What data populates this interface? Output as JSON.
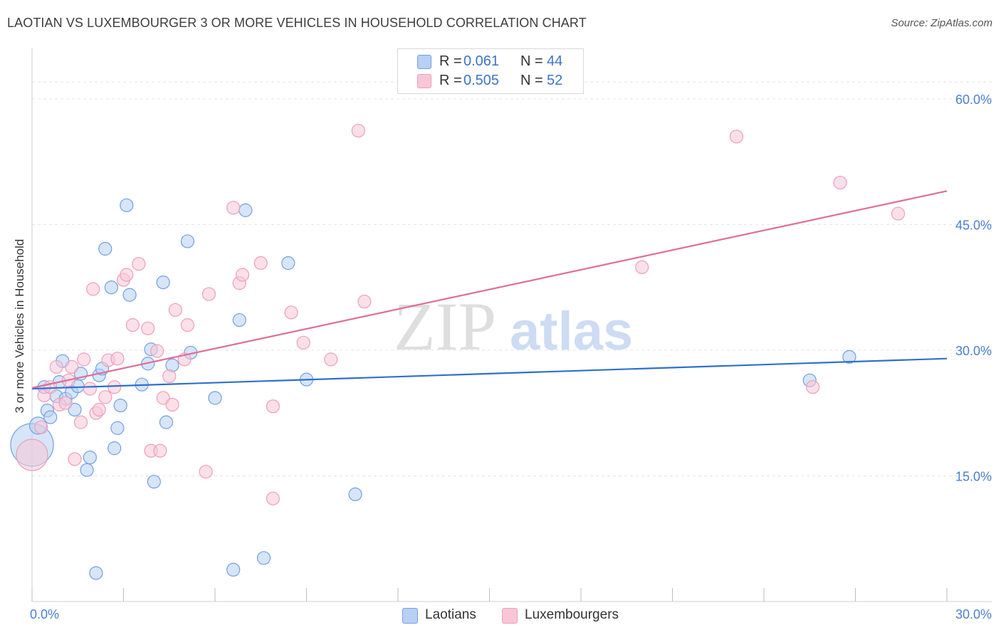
{
  "title": "LAOTIAN VS LUXEMBOURGER 3 OR MORE VEHICLES IN HOUSEHOLD CORRELATION CHART",
  "source": "Source: ZipAtlas.com",
  "watermark": {
    "zip": "ZIP",
    "atlas": "atlas"
  },
  "legend": {
    "r_label": "R =",
    "n_label": "N =",
    "rows": [
      {
        "r": "0.061",
        "n": "44"
      },
      {
        "r": "0.505",
        "n": "52"
      }
    ]
  },
  "chart_data": {
    "type": "scatter",
    "ylabel": "3 or more Vehicles in Household",
    "xlabel": "",
    "xlim": [
      0,
      30
    ],
    "ylim": [
      0,
      60
    ],
    "x_tick_labels": [
      "0.0%",
      "30.0%"
    ],
    "y_ticks": [
      {
        "value": 15,
        "label": "15.0%"
      },
      {
        "value": 30,
        "label": "30.0%"
      },
      {
        "value": 45,
        "label": "45.0%"
      },
      {
        "value": 60,
        "label": "60.0%"
      }
    ],
    "grid": true,
    "legend_position": "top-center",
    "series": [
      {
        "name": "Laotians",
        "color": "#6fa0e4",
        "fill": "#b7d0f3",
        "line_color": "#2f6fce",
        "trend": {
          "x": [
            0,
            30
          ],
          "y": [
            25.4,
            29.0
          ]
        },
        "points": [
          [
            0.0,
            18.7,
            30
          ],
          [
            0.2,
            21.0,
            12
          ],
          [
            0.4,
            25.6,
            9
          ],
          [
            0.5,
            22.8,
            9
          ],
          [
            0.6,
            22.0,
            9
          ],
          [
            0.8,
            24.5,
            9
          ],
          [
            0.9,
            26.2,
            9
          ],
          [
            1.0,
            28.7,
            9
          ],
          [
            1.1,
            24.2,
            9
          ],
          [
            1.3,
            25.0,
            9
          ],
          [
            1.4,
            22.9,
            9
          ],
          [
            1.5,
            25.7,
            9
          ],
          [
            1.6,
            27.2,
            9
          ],
          [
            1.8,
            15.7,
            9
          ],
          [
            1.9,
            17.2,
            9
          ],
          [
            2.1,
            3.4,
            9
          ],
          [
            2.2,
            27.0,
            9
          ],
          [
            2.3,
            27.8,
            9
          ],
          [
            2.4,
            42.1,
            9
          ],
          [
            2.6,
            37.5,
            9
          ],
          [
            2.7,
            18.3,
            9
          ],
          [
            2.8,
            20.7,
            9
          ],
          [
            2.9,
            23.4,
            9
          ],
          [
            3.1,
            47.3,
            9
          ],
          [
            3.2,
            36.6,
            9
          ],
          [
            3.6,
            25.9,
            9
          ],
          [
            3.8,
            28.4,
            9
          ],
          [
            3.9,
            30.1,
            9
          ],
          [
            4.0,
            14.3,
            9
          ],
          [
            4.3,
            38.1,
            9
          ],
          [
            4.4,
            21.4,
            9
          ],
          [
            4.6,
            28.2,
            9
          ],
          [
            5.1,
            43.0,
            9
          ],
          [
            5.2,
            29.7,
            9
          ],
          [
            6.0,
            24.3,
            9
          ],
          [
            6.6,
            3.8,
            9
          ],
          [
            6.8,
            33.6,
            9
          ],
          [
            7.0,
            46.7,
            9
          ],
          [
            7.6,
            5.2,
            9
          ],
          [
            8.4,
            40.4,
            9
          ],
          [
            9.0,
            26.5,
            9
          ],
          [
            10.6,
            12.8,
            9
          ],
          [
            25.5,
            26.4,
            9
          ],
          [
            26.8,
            29.2,
            9
          ]
        ]
      },
      {
        "name": "Luxembourgers",
        "color": "#ef9db8",
        "fill": "#f8c7d7",
        "line_color": "#e06d96",
        "trend": {
          "x": [
            0,
            30
          ],
          "y": [
            25.5,
            49.0
          ]
        },
        "points": [
          [
            0.0,
            17.5,
            22
          ],
          [
            0.3,
            20.8,
            9
          ],
          [
            0.4,
            24.6,
            9
          ],
          [
            0.6,
            25.6,
            9
          ],
          [
            0.8,
            28.0,
            9
          ],
          [
            0.9,
            23.5,
            9
          ],
          [
            1.1,
            23.7,
            9
          ],
          [
            1.2,
            26.4,
            9
          ],
          [
            1.3,
            28.0,
            9
          ],
          [
            1.4,
            17.0,
            9
          ],
          [
            1.6,
            21.4,
            9
          ],
          [
            1.7,
            28.9,
            9
          ],
          [
            1.9,
            25.4,
            9
          ],
          [
            2.0,
            37.3,
            9
          ],
          [
            2.1,
            22.5,
            9
          ],
          [
            2.2,
            22.9,
            9
          ],
          [
            2.4,
            24.4,
            9
          ],
          [
            2.5,
            28.8,
            9
          ],
          [
            2.7,
            25.6,
            9
          ],
          [
            2.8,
            29.0,
            9
          ],
          [
            3.0,
            38.4,
            9
          ],
          [
            3.1,
            39.0,
            9
          ],
          [
            3.3,
            33.0,
            9
          ],
          [
            3.5,
            40.3,
            9
          ],
          [
            3.8,
            32.6,
            9
          ],
          [
            3.9,
            18.0,
            9
          ],
          [
            4.1,
            29.9,
            9
          ],
          [
            4.2,
            18.0,
            9
          ],
          [
            4.3,
            24.3,
            9
          ],
          [
            4.5,
            26.9,
            9
          ],
          [
            4.6,
            23.5,
            9
          ],
          [
            4.7,
            34.8,
            9
          ],
          [
            5.0,
            28.9,
            9
          ],
          [
            5.1,
            33.0,
            9
          ],
          [
            5.7,
            15.5,
            9
          ],
          [
            5.8,
            36.7,
            9
          ],
          [
            6.6,
            47.0,
            9
          ],
          [
            6.8,
            38.0,
            9
          ],
          [
            6.9,
            39.0,
            9
          ],
          [
            7.5,
            40.4,
            9
          ],
          [
            7.9,
            23.3,
            9
          ],
          [
            7.9,
            12.3,
            9
          ],
          [
            8.5,
            34.5,
            9
          ],
          [
            8.9,
            30.9,
            9
          ],
          [
            9.8,
            28.9,
            9
          ],
          [
            10.7,
            56.2,
            9
          ],
          [
            10.9,
            35.8,
            9
          ],
          [
            20.0,
            39.9,
            9
          ],
          [
            23.1,
            55.5,
            9
          ],
          [
            25.6,
            25.6,
            9
          ],
          [
            26.5,
            50.0,
            9
          ],
          [
            28.4,
            46.3,
            9
          ]
        ]
      }
    ]
  }
}
